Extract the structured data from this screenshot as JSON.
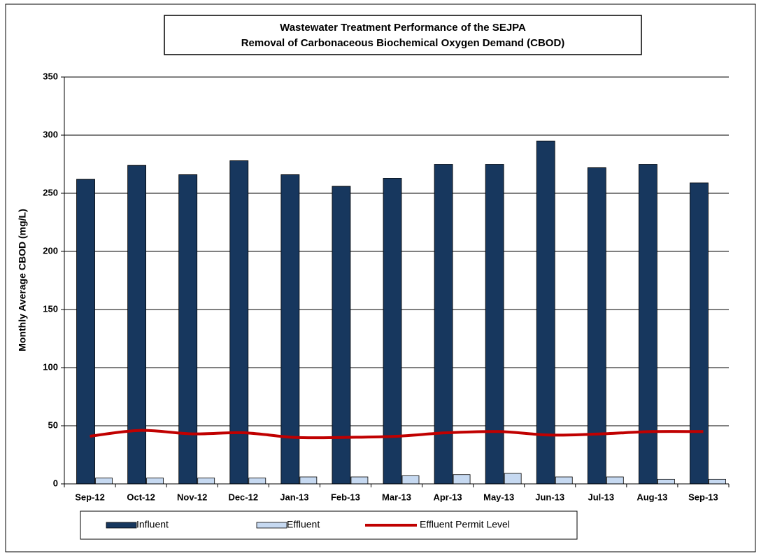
{
  "chart_data": {
    "type": "bar",
    "title": "Wastewater Treatment Performance of the SEJPA",
    "subtitle": "Removal of Carbonaceous Biochemical Oxygen Demand (CBOD)",
    "y_label": "Monthly Average CBOD (mg/L)",
    "categories": [
      "Sep-12",
      "Oct-12",
      "Nov-12",
      "Dec-12",
      "Jan-13",
      "Feb-13",
      "Mar-13",
      "Apr-13",
      "May-13",
      "Jun-13",
      "Jul-13",
      "Aug-13",
      "Sep-13"
    ],
    "series": [
      {
        "name": "Influent",
        "type": "bar",
        "color": "#17375e",
        "values": [
          262,
          274,
          266,
          278,
          266,
          256,
          263,
          275,
          275,
          295,
          272,
          275,
          259
        ]
      },
      {
        "name": "Effluent",
        "type": "bar",
        "color": "#c6d9f1",
        "values": [
          5,
          5,
          5,
          5,
          6,
          6,
          7,
          8,
          9,
          6,
          6,
          4,
          4
        ]
      },
      {
        "name": "Effluent Permit Level",
        "type": "line",
        "color": "#c00000",
        "values": [
          41,
          46,
          43,
          44,
          40,
          40,
          41,
          44,
          45,
          42,
          43,
          45,
          45
        ]
      }
    ],
    "ylim": [
      0,
      350
    ],
    "yticks": [
      0,
      50,
      100,
      150,
      200,
      250,
      300,
      350
    ],
    "grid": true
  }
}
